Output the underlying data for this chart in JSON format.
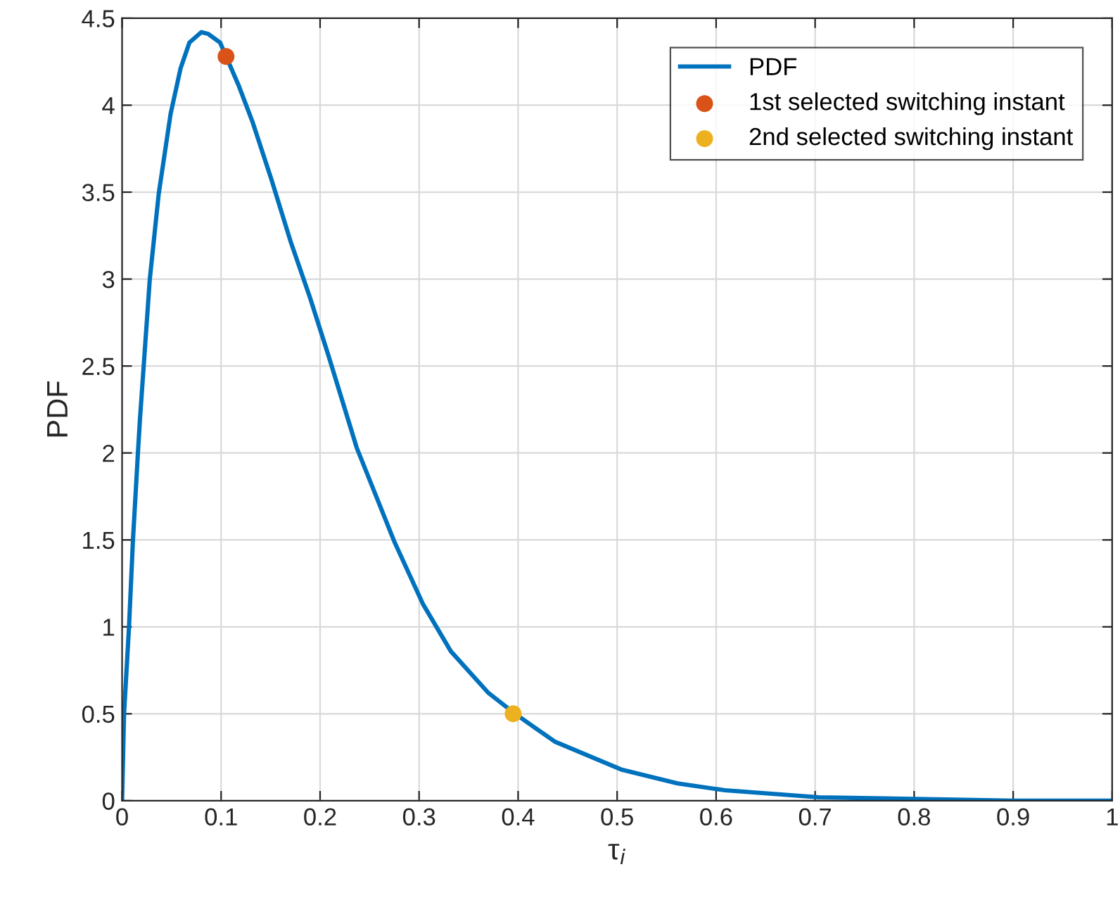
{
  "chart_data": {
    "type": "line",
    "xlabel": "τ$_{i}$",
    "ylabel": "PDF",
    "xlim": [
      0,
      1
    ],
    "ylim": [
      0,
      4.5
    ],
    "xticks": [
      0,
      0.1,
      0.2,
      0.3,
      0.4,
      0.5,
      0.6,
      0.7,
      0.8,
      0.9,
      1
    ],
    "yticks": [
      0,
      0.5,
      1,
      1.5,
      2,
      2.5,
      3,
      3.5,
      4,
      4.5
    ],
    "grid": true,
    "legend": "top right",
    "series": [
      {
        "name": "PDF",
        "color": "#0072bd",
        "marker": "none",
        "line_style": "solid",
        "x": [
          0,
          0.002,
          0.007,
          0.011,
          0.016,
          0.018,
          0.028,
          0.037,
          0.049,
          0.059,
          0.068,
          0.08,
          0.087,
          0.099,
          0.118,
          0.132,
          0.151,
          0.17,
          0.19,
          0.209,
          0.237,
          0.275,
          0.304,
          0.332,
          0.37,
          0.397,
          0.437,
          0.504,
          0.561,
          0.609,
          0.704,
          0.8,
          0.9,
          1
        ],
        "values": [
          0,
          0.5,
          1.0,
          1.5,
          2.0,
          2.19,
          3.0,
          3.49,
          3.95,
          4.21,
          4.36,
          4.42,
          4.41,
          4.36,
          4.11,
          3.9,
          3.57,
          3.22,
          2.89,
          2.55,
          2.03,
          1.49,
          1.13,
          0.86,
          0.62,
          0.5,
          0.34,
          0.18,
          0.1,
          0.06,
          0.02,
          0.01,
          0,
          0
        ]
      },
      {
        "name": "1st selected switching instant",
        "type": "scatter",
        "color": "#d95319",
        "marker": "circle",
        "x": [
          0.105
        ],
        "values": [
          4.28
        ]
      },
      {
        "name": "2nd selected switching instant",
        "type": "scatter",
        "color": "#edb120",
        "marker": "circle",
        "x": [
          0.395
        ],
        "values": [
          0.5
        ]
      }
    ]
  }
}
